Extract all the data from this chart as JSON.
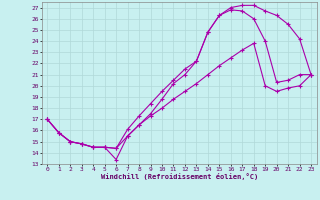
{
  "xlabel": "Windchill (Refroidissement éolien,°C)",
  "bg_color": "#c8f0f0",
  "grid_color": "#b0d8d8",
  "line_color": "#aa00aa",
  "xlim": [
    -0.5,
    23.5
  ],
  "ylim": [
    13,
    27.5
  ],
  "xticks": [
    0,
    1,
    2,
    3,
    4,
    5,
    6,
    7,
    8,
    9,
    10,
    11,
    12,
    13,
    14,
    15,
    16,
    17,
    18,
    19,
    20,
    21,
    22,
    23
  ],
  "yticks": [
    13,
    14,
    15,
    16,
    17,
    18,
    19,
    20,
    21,
    22,
    23,
    24,
    25,
    26,
    27
  ],
  "line1_x": [
    0,
    1,
    2,
    3,
    4,
    5,
    6,
    7,
    8,
    9,
    10,
    11,
    12,
    13,
    14,
    15,
    16,
    17,
    18,
    19,
    20,
    21,
    22,
    23
  ],
  "line1_y": [
    17.0,
    15.8,
    15.0,
    14.8,
    14.5,
    14.5,
    14.4,
    16.1,
    17.3,
    18.4,
    19.5,
    20.5,
    21.5,
    22.2,
    24.8,
    26.3,
    27.0,
    27.2,
    27.2,
    26.7,
    26.3,
    25.5,
    24.2,
    21.0
  ],
  "line2_x": [
    0,
    1,
    2,
    3,
    4,
    5,
    6,
    7,
    8,
    9,
    10,
    11,
    12,
    13,
    14,
    15,
    16,
    17,
    18,
    19,
    20,
    21,
    22,
    23
  ],
  "line2_y": [
    17.0,
    15.8,
    15.0,
    14.8,
    14.5,
    14.5,
    13.4,
    15.5,
    16.5,
    17.5,
    18.8,
    20.2,
    21.0,
    22.2,
    24.8,
    26.3,
    26.8,
    26.7,
    26.0,
    24.0,
    20.3,
    20.5,
    21.0,
    21.0
  ],
  "line3_x": [
    0,
    1,
    2,
    3,
    4,
    5,
    6,
    7,
    8,
    9,
    10,
    11,
    12,
    13,
    14,
    15,
    16,
    17,
    18,
    19,
    20,
    21,
    22,
    23
  ],
  "line3_y": [
    17.0,
    15.8,
    15.0,
    14.8,
    14.5,
    14.5,
    14.4,
    15.5,
    16.5,
    17.3,
    18.0,
    18.8,
    19.5,
    20.2,
    21.0,
    21.8,
    22.5,
    23.2,
    23.8,
    20.0,
    19.5,
    19.8,
    20.0,
    21.0
  ]
}
